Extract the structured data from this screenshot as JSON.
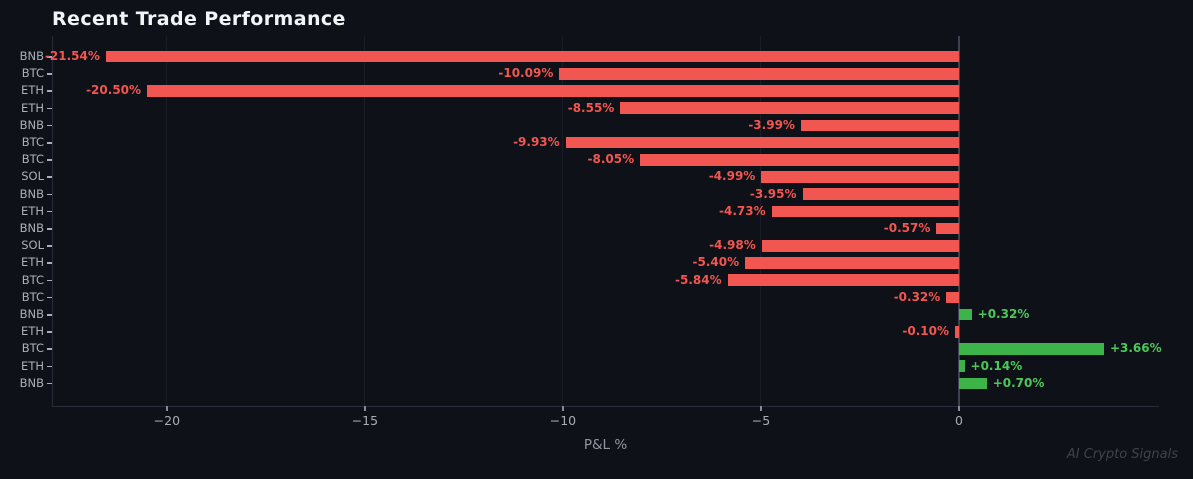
{
  "chart_data": {
    "type": "bar",
    "orientation": "horizontal",
    "title": "Recent Trade Performance",
    "xlabel": "P&L %",
    "ylabel": "",
    "categories": [
      "BNB",
      "BTC",
      "ETH",
      "ETH",
      "BNB",
      "BTC",
      "BTC",
      "SOL",
      "BNB",
      "ETH",
      "BNB",
      "SOL",
      "ETH",
      "BTC",
      "BTC",
      "BNB",
      "ETH",
      "BTC",
      "ETH",
      "BNB"
    ],
    "values": [
      -21.54,
      -10.09,
      -20.5,
      -8.55,
      -3.99,
      -9.93,
      -8.05,
      -4.99,
      -3.95,
      -4.73,
      -0.57,
      -4.98,
      -5.4,
      -5.84,
      -0.32,
      0.32,
      -0.1,
      3.66,
      0.14,
      0.7
    ],
    "value_labels": [
      "-21.54%",
      "-10.09%",
      "-20.50%",
      "-8.55%",
      "-3.99%",
      "-9.93%",
      "-8.05%",
      "-4.99%",
      "-3.95%",
      "-4.73%",
      "-0.57%",
      "-4.98%",
      "-5.40%",
      "-5.84%",
      "-0.32%",
      "+0.32%",
      "-0.10%",
      "+3.66%",
      "+0.14%",
      "+0.70%"
    ],
    "xticks": [
      -20,
      -15,
      -10,
      -5,
      0
    ],
    "xtick_labels": [
      "−20",
      "−15",
      "−10",
      "−5",
      "0"
    ],
    "xlim": [
      -22.9,
      5.05
    ],
    "grid": "vertical-gridlines-at-ticks",
    "legend": "none",
    "colors": {
      "background": "#0e1117",
      "negative_bar": "#f25650",
      "positive_bar": "#3cb44a",
      "negative_label": "#f25650",
      "positive_label": "#4cc859",
      "zero_line": "#3c424e",
      "gridline": "#181d28",
      "spine": "#262c39",
      "axis_text": "#aab0ba",
      "title_text": "#f2f4f7",
      "xlabel_text": "#9097a3",
      "watermark_text": "#3d4350"
    }
  },
  "footer": {
    "watermark": "AI Crypto Signals"
  }
}
